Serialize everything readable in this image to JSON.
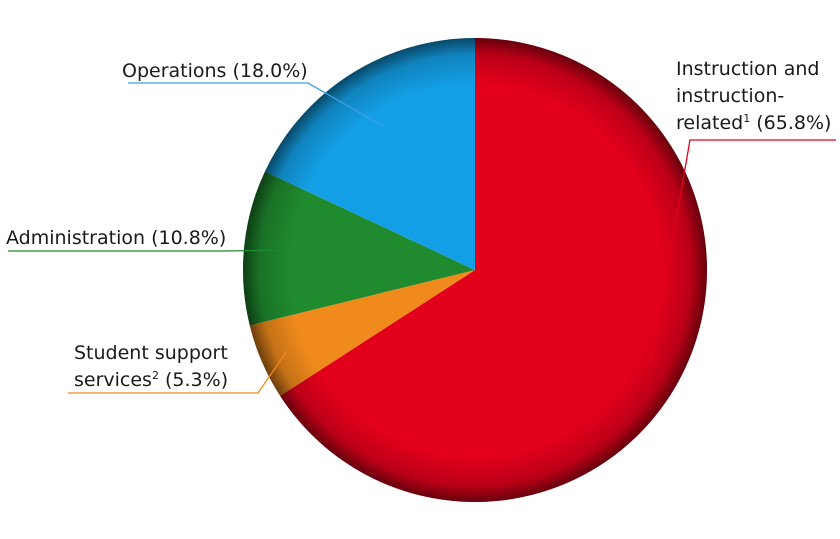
{
  "chart_data": {
    "type": "pie",
    "title": "",
    "slices": [
      {
        "key": "instruction",
        "label_lines": [
          "Instruction and",
          "instruction-",
          "related"
        ],
        "note": "1",
        "value_text": "(65.8%)",
        "value": 65.8,
        "color": "#e3001b",
        "line_color": "#e3001b"
      },
      {
        "key": "student",
        "label_lines": [
          "Student support",
          "services"
        ],
        "note": "2",
        "value_text": "(5.3%)",
        "value": 5.3,
        "color": "#f08a1c",
        "line_color": "#f08a1c"
      },
      {
        "key": "admin",
        "label_lines": [
          "Administration"
        ],
        "note": "",
        "value_text": "(10.8%)",
        "value": 10.8,
        "color": "#1f8a2e",
        "line_color": "#1f8a2e"
      },
      {
        "key": "operations",
        "label_lines": [
          "Operations"
        ],
        "note": "",
        "value_text": "(18.0%)",
        "value": 18.0,
        "color": "#139fe6",
        "line_color": "#3aa0e0"
      }
    ]
  }
}
